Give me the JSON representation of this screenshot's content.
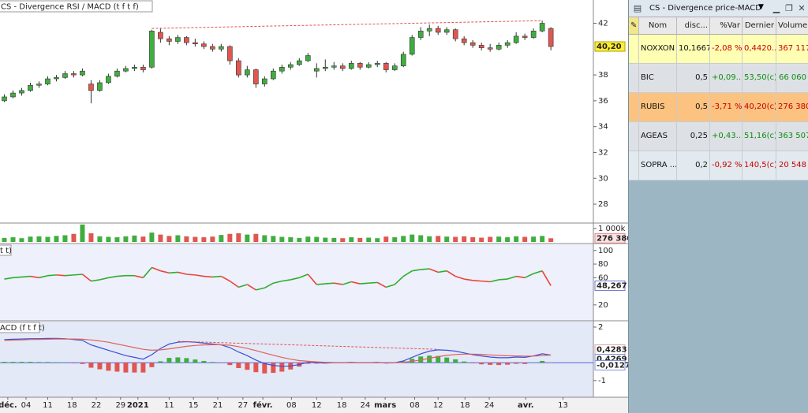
{
  "tab_title": "CS - Divergence RSI / MACD (t f t f)",
  "chart_data": {
    "type": "candlestick",
    "xlim": [
      -0.5,
      67.9
    ],
    "xticks": [
      {
        "value": 0.4,
        "label": "déc."
      },
      {
        "value": 2.5,
        "label": "04"
      },
      {
        "value": 5,
        "label": "11"
      },
      {
        "value": 7.8,
        "label": "18"
      },
      {
        "value": 10.6,
        "label": "22"
      },
      {
        "value": 13.4,
        "label": "29"
      },
      {
        "value": 15.4,
        "label": "2021"
      },
      {
        "value": 19,
        "label": "11"
      },
      {
        "value": 21.8,
        "label": "15"
      },
      {
        "value": 24.6,
        "label": "21"
      },
      {
        "value": 27.5,
        "label": "27"
      },
      {
        "value": 29.8,
        "label": "févr."
      },
      {
        "value": 33.1,
        "label": "08"
      },
      {
        "value": 36,
        "label": "12"
      },
      {
        "value": 38.9,
        "label": "18"
      },
      {
        "value": 41.6,
        "label": "24"
      },
      {
        "value": 43.9,
        "label": "mars"
      },
      {
        "value": 47.3,
        "label": "08"
      },
      {
        "value": 50,
        "label": "12"
      },
      {
        "value": 53.1,
        "label": "18"
      },
      {
        "value": 55.9,
        "label": "24"
      },
      {
        "value": 60.1,
        "label": "avr."
      },
      {
        "value": 64.4,
        "label": "13"
      }
    ],
    "ylim": [
      26.6,
      43.8
    ],
    "yticks": [
      28,
      30,
      32,
      34,
      36,
      38,
      42
    ],
    "up_color": "#3fae3f",
    "down_color": "#e0574f",
    "candles": [
      [
        36.0,
        36.5,
        35.9,
        36.3
      ],
      [
        36.3,
        36.8,
        36.2,
        36.6
      ],
      [
        36.6,
        37.0,
        36.4,
        36.8
      ],
      [
        36.8,
        37.4,
        36.7,
        37.2
      ],
      [
        37.2,
        37.5,
        37.0,
        37.3
      ],
      [
        37.3,
        37.9,
        37.2,
        37.7
      ],
      [
        37.7,
        38.0,
        37.5,
        37.8
      ],
      [
        37.8,
        38.3,
        37.7,
        38.1
      ],
      [
        38.1,
        38.3,
        37.8,
        38.0
      ],
      [
        38.0,
        38.5,
        37.9,
        38.3
      ],
      [
        37.3,
        37.6,
        35.8,
        36.8
      ],
      [
        36.8,
        37.6,
        36.7,
        37.4
      ],
      [
        37.4,
        38.1,
        37.3,
        37.9
      ],
      [
        37.9,
        38.5,
        37.8,
        38.3
      ],
      [
        38.3,
        38.7,
        38.2,
        38.5
      ],
      [
        38.5,
        38.8,
        38.3,
        38.6
      ],
      [
        38.6,
        38.8,
        38.2,
        38.4
      ],
      [
        38.6,
        41.5,
        38.5,
        41.4
      ],
      [
        41.3,
        41.6,
        40.5,
        40.8
      ],
      [
        40.8,
        41.0,
        40.3,
        40.6
      ],
      [
        40.6,
        41.1,
        40.4,
        40.9
      ],
      [
        40.9,
        41.0,
        40.3,
        40.5
      ],
      [
        40.5,
        40.8,
        40.2,
        40.4
      ],
      [
        40.4,
        40.6,
        40.0,
        40.2
      ],
      [
        40.2,
        40.4,
        39.8,
        40.0
      ],
      [
        40.0,
        40.4,
        39.8,
        40.2
      ],
      [
        40.2,
        40.3,
        38.8,
        39.1
      ],
      [
        39.1,
        39.3,
        37.8,
        38.0
      ],
      [
        38.0,
        38.7,
        37.8,
        38.4
      ],
      [
        38.4,
        38.5,
        37.0,
        37.3
      ],
      [
        37.3,
        37.9,
        37.1,
        37.7
      ],
      [
        37.7,
        38.5,
        37.6,
        38.3
      ],
      [
        38.3,
        38.8,
        38.1,
        38.6
      ],
      [
        38.6,
        39.0,
        38.4,
        38.8
      ],
      [
        38.8,
        39.3,
        38.7,
        39.1
      ],
      [
        39.1,
        39.7,
        39.0,
        39.5
      ],
      [
        38.3,
        38.9,
        37.8,
        38.5
      ],
      [
        38.5,
        39.2,
        38.3,
        38.6
      ],
      [
        38.6,
        39.0,
        38.4,
        38.7
      ],
      [
        38.7,
        38.9,
        38.3,
        38.5
      ],
      [
        38.5,
        39.1,
        38.4,
        38.9
      ],
      [
        38.9,
        39.0,
        38.4,
        38.6
      ],
      [
        38.6,
        39.0,
        38.5,
        38.8
      ],
      [
        38.8,
        39.1,
        38.6,
        38.9
      ],
      [
        38.9,
        39.0,
        38.2,
        38.4
      ],
      [
        38.4,
        38.9,
        38.3,
        38.7
      ],
      [
        38.7,
        39.8,
        38.6,
        39.6
      ],
      [
        39.6,
        41.1,
        39.5,
        40.9
      ],
      [
        40.9,
        41.7,
        40.7,
        41.4
      ],
      [
        41.4,
        41.9,
        41.0,
        41.6
      ],
      [
        41.6,
        41.8,
        41.1,
        41.3
      ],
      [
        41.3,
        41.7,
        41.1,
        41.5
      ],
      [
        41.5,
        41.6,
        40.6,
        40.8
      ],
      [
        40.8,
        41.0,
        40.3,
        40.5
      ],
      [
        40.5,
        40.7,
        40.1,
        40.3
      ],
      [
        40.3,
        40.5,
        39.9,
        40.1
      ],
      [
        40.1,
        40.4,
        39.8,
        40.0
      ],
      [
        40.0,
        40.5,
        39.9,
        40.3
      ],
      [
        40.3,
        40.7,
        40.1,
        40.5
      ],
      [
        40.5,
        41.3,
        40.4,
        41.0
      ],
      [
        41.0,
        41.2,
        40.7,
        40.9
      ],
      [
        40.9,
        41.6,
        40.8,
        41.4
      ],
      [
        41.4,
        42.2,
        41.3,
        42.0
      ],
      [
        41.6,
        41.7,
        39.9,
        40.2
      ]
    ],
    "current": {
      "value": 40.2,
      "label": "40,20"
    },
    "trendline": {
      "x": [
        17,
        62
      ],
      "y": [
        41.6,
        42.2
      ],
      "color": "#e05050"
    },
    "volume": {
      "ylim": [
        0,
        1350000
      ],
      "yticks": [
        {
          "value": 1000000,
          "label": "1 000k"
        }
      ],
      "values": [
        300000,
        350000,
        280000,
        400000,
        420000,
        380000,
        450000,
        500000,
        600000,
        1300000,
        650000,
        420000,
        380000,
        350000,
        420000,
        480000,
        400000,
        700000,
        550000,
        450000,
        500000,
        420000,
        380000,
        350000,
        400000,
        520000,
        600000,
        650000,
        550000,
        600000,
        500000,
        450000,
        380000,
        350000,
        300000,
        400000,
        380000,
        320000,
        300000,
        280000,
        350000,
        300000,
        320000,
        280000,
        400000,
        350000,
        450000,
        550000,
        500000,
        420000,
        450000,
        400000,
        380000,
        420000,
        350000,
        320000,
        380000,
        400000,
        350000,
        420000,
        380000,
        400000,
        450000,
        276380
      ],
      "current": {
        "value": 276380,
        "label": "276 380"
      }
    },
    "rsi": {
      "title": "t t)",
      "ylim": [
        -1,
        109
      ],
      "yticks": [
        20,
        60,
        80,
        100
      ],
      "up_color": "#2eae2e",
      "down_color": "#e8453c",
      "values": [
        58,
        60,
        61,
        62,
        60,
        63,
        64,
        63,
        64,
        65,
        55,
        57,
        60,
        62,
        63,
        63,
        60,
        75,
        70,
        67,
        68,
        65,
        64,
        62,
        61,
        62,
        55,
        46,
        50,
        42,
        45,
        52,
        55,
        57,
        60,
        65,
        50,
        51,
        52,
        50,
        54,
        51,
        52,
        53,
        46,
        50,
        62,
        70,
        72,
        73,
        68,
        70,
        62,
        58,
        56,
        55,
        54,
        57,
        58,
        62,
        60,
        66,
        70,
        48.267
      ],
      "current": {
        "value": 48.267,
        "label": "48,267"
      }
    },
    "macd": {
      "title": "ACD (f t f t)",
      "ylim": [
        -1.76,
        2.22
      ],
      "yticks": [
        2,
        -1
      ],
      "series": [
        {
          "color": "#3a4fd8",
          "values": [
            1.3,
            1.32,
            1.33,
            1.35,
            1.35,
            1.36,
            1.36,
            1.35,
            1.3,
            1.25,
            1.0,
            0.85,
            0.7,
            0.55,
            0.4,
            0.3,
            0.2,
            0.45,
            0.8,
            1.05,
            1.15,
            1.18,
            1.15,
            1.1,
            1.05,
            1.0,
            0.85,
            0.6,
            0.4,
            0.15,
            -0.05,
            -0.15,
            -0.2,
            -0.18,
            -0.1,
            0.02,
            0.0,
            -0.02,
            0.0,
            0.0,
            0.02,
            0.0,
            0.0,
            0.02,
            -0.02,
            0.0,
            0.1,
            0.3,
            0.5,
            0.65,
            0.72,
            0.7,
            0.65,
            0.55,
            0.45,
            0.38,
            0.32,
            0.28,
            0.28,
            0.32,
            0.3,
            0.38,
            0.5,
            0.4269
          ],
          "current": {
            "value": 0.4269,
            "label": "0,4269"
          }
        },
        {
          "color": "#e0605a",
          "values": [
            1.25,
            1.27,
            1.28,
            1.3,
            1.31,
            1.32,
            1.33,
            1.33,
            1.33,
            1.32,
            1.28,
            1.22,
            1.15,
            1.05,
            0.95,
            0.85,
            0.75,
            0.7,
            0.72,
            0.78,
            0.85,
            0.92,
            0.97,
            1.0,
            1.01,
            1.01,
            0.98,
            0.9,
            0.8,
            0.68,
            0.55,
            0.42,
            0.3,
            0.2,
            0.12,
            0.08,
            0.05,
            0.02,
            0.01,
            0.0,
            0.0,
            0.0,
            0.0,
            0.0,
            0.0,
            0.0,
            0.02,
            0.08,
            0.15,
            0.25,
            0.34,
            0.41,
            0.46,
            0.48,
            0.48,
            0.47,
            0.44,
            0.41,
            0.39,
            0.38,
            0.37,
            0.37,
            0.4,
            0.4283
          ],
          "current": {
            "value": 0.4283,
            "label": "0,4283"
          }
        }
      ],
      "histogram": {
        "up_color": "#3fae3f",
        "down_color": "#e0574f",
        "values": [
          0.05,
          0.05,
          0.05,
          0.05,
          0.04,
          0.04,
          0.03,
          0.02,
          -0.03,
          -0.07,
          -0.28,
          -0.37,
          -0.45,
          -0.5,
          -0.55,
          -0.55,
          -0.55,
          -0.25,
          0.08,
          0.27,
          0.3,
          0.26,
          0.18,
          0.1,
          0.04,
          -0.01,
          -0.13,
          -0.3,
          -0.4,
          -0.53,
          -0.6,
          -0.57,
          -0.5,
          -0.38,
          -0.22,
          -0.06,
          -0.05,
          -0.04,
          -0.01,
          0.0,
          0.02,
          0.0,
          0.0,
          0.02,
          -0.02,
          0.0,
          0.08,
          0.22,
          0.35,
          0.4,
          0.38,
          0.29,
          0.19,
          0.07,
          -0.03,
          -0.09,
          -0.12,
          -0.13,
          -0.11,
          -0.06,
          -0.07,
          0.01,
          0.1,
          -0.0127
        ],
        "current": {
          "value": -0.0127,
          "label": "-0,0127"
        }
      },
      "trendline": {
        "x": [
          20,
          50
        ],
        "y": [
          1.2,
          0.75
        ],
        "color": "#e05050"
      }
    }
  },
  "watchlist": {
    "title": "CS - Divergence price-MACD",
    "columns": [
      "Nom",
      "disc...",
      "%Var",
      "Dernier",
      "Volume"
    ],
    "rows": [
      [
        "NOXXON",
        "10,1667",
        "-2,08 %",
        "0,4420...",
        "367 117"
      ],
      [
        "BIC",
        "0,5",
        "+0,09...",
        "53,50(c)",
        "66 060"
      ],
      [
        "RUBIS",
        "0,5",
        "-3,71 %",
        "40,20(c)",
        "276 380"
      ],
      [
        "AGEAS",
        "0,25",
        "+0,43...",
        "51,16(c)",
        "363 507"
      ],
      [
        "SOPRA ...",
        "0,2",
        "-0,92 %",
        "140,5(c)",
        "20 548"
      ]
    ],
    "row_colors": [
      "#ffffb4",
      "#dde1e6",
      "#fcc27f",
      "#dde1e6",
      "#e2eaef"
    ]
  }
}
